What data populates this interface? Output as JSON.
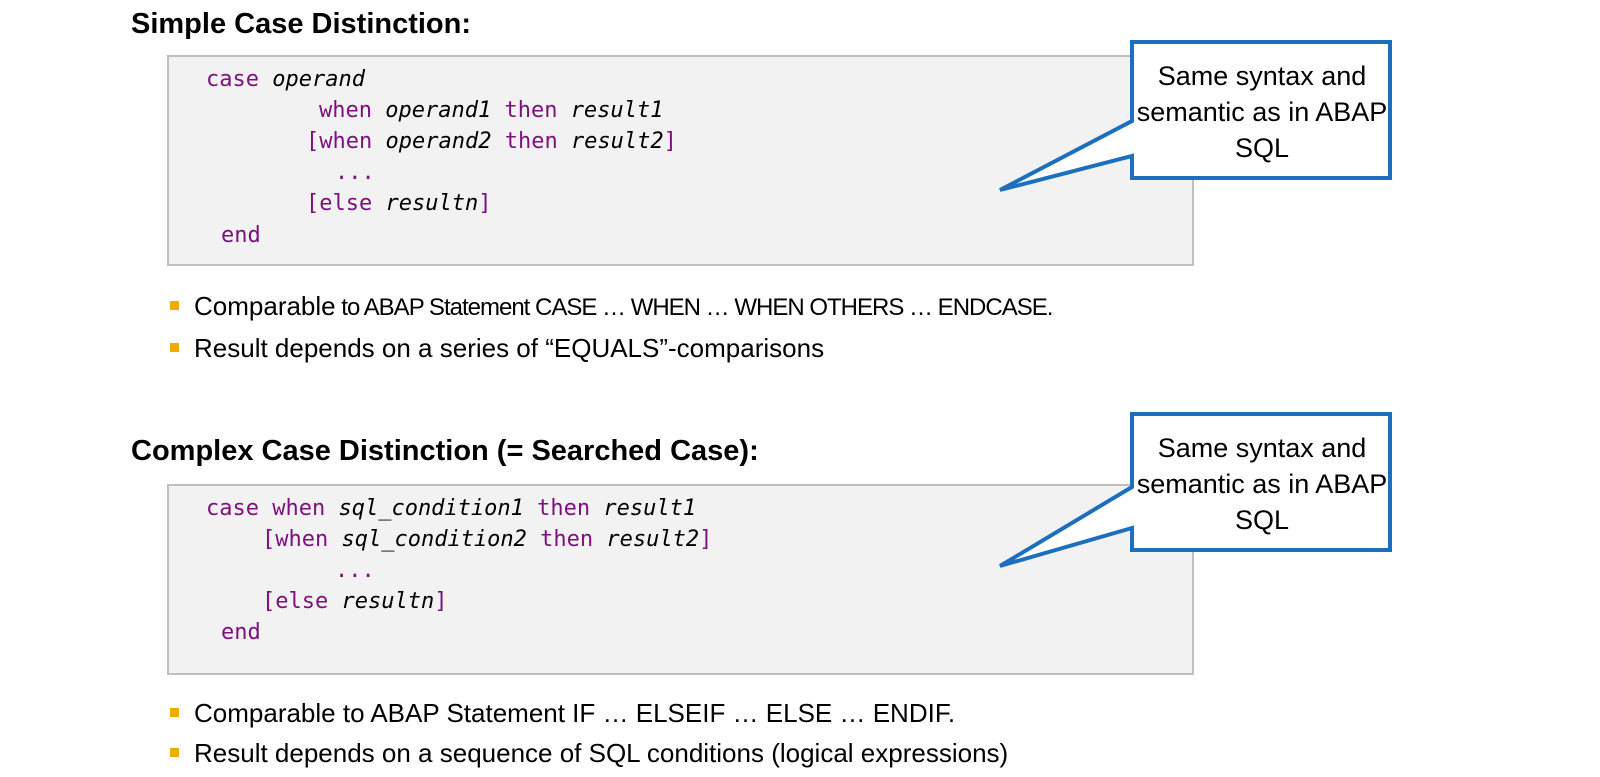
{
  "section1": {
    "heading": "Simple Case Distinction:",
    "code": {
      "l1_kw": "case",
      "l1_it": "operand",
      "l2_kw1": "when",
      "l2_it1": "operand1",
      "l2_kw2": "then",
      "l2_it2": "result1",
      "l3_open": "[when",
      "l3_it1": "operand2",
      "l3_kw2": "then",
      "l3_it2": "result2",
      "l3_close": "]",
      "l4_dots": "...",
      "l5_open": "[else",
      "l5_it": "resultn",
      "l5_close": "]",
      "l6_kw": "end"
    },
    "callout": "Same syntax and semantic as in ABAP SQL",
    "bullets": [
      {
        "a": "Comparable",
        "b": " to ABAP Statement CASE … WHEN … WHEN OTHERS …   ENDCASE."
      },
      {
        "a": "Result depends on a series of “EQUALS”-comparisons",
        "b": ""
      }
    ]
  },
  "section2": {
    "heading": "Complex Case Distinction (= Searched Case):",
    "code": {
      "l1_kw1": "case",
      "l1_kw2": "when",
      "l1_it1": "sql_condition1",
      "l1_kw3": "then",
      "l1_it2": "result1",
      "l2_open": "[when",
      "l2_it1": "sql_condition2",
      "l2_kw2": "then",
      "l2_it2": "result2",
      "l2_close": "]",
      "l3_dots": "...",
      "l4_open": "[else",
      "l4_it": "resultn",
      "l4_close": "]",
      "l5_kw": "end"
    },
    "callout": "Same syntax and semantic as in ABAP SQL",
    "bullets": [
      "Comparable to ABAP Statement IF … ELSEIF … ELSE … ENDIF.",
      "Result depends on a sequence of SQL conditions (logical expressions)"
    ]
  },
  "colors": {
    "keyword": "#7f0f7f",
    "callout_border": "#1c6fbf",
    "bullet": "#f0ab00",
    "code_bg": "#f2f2f2"
  }
}
